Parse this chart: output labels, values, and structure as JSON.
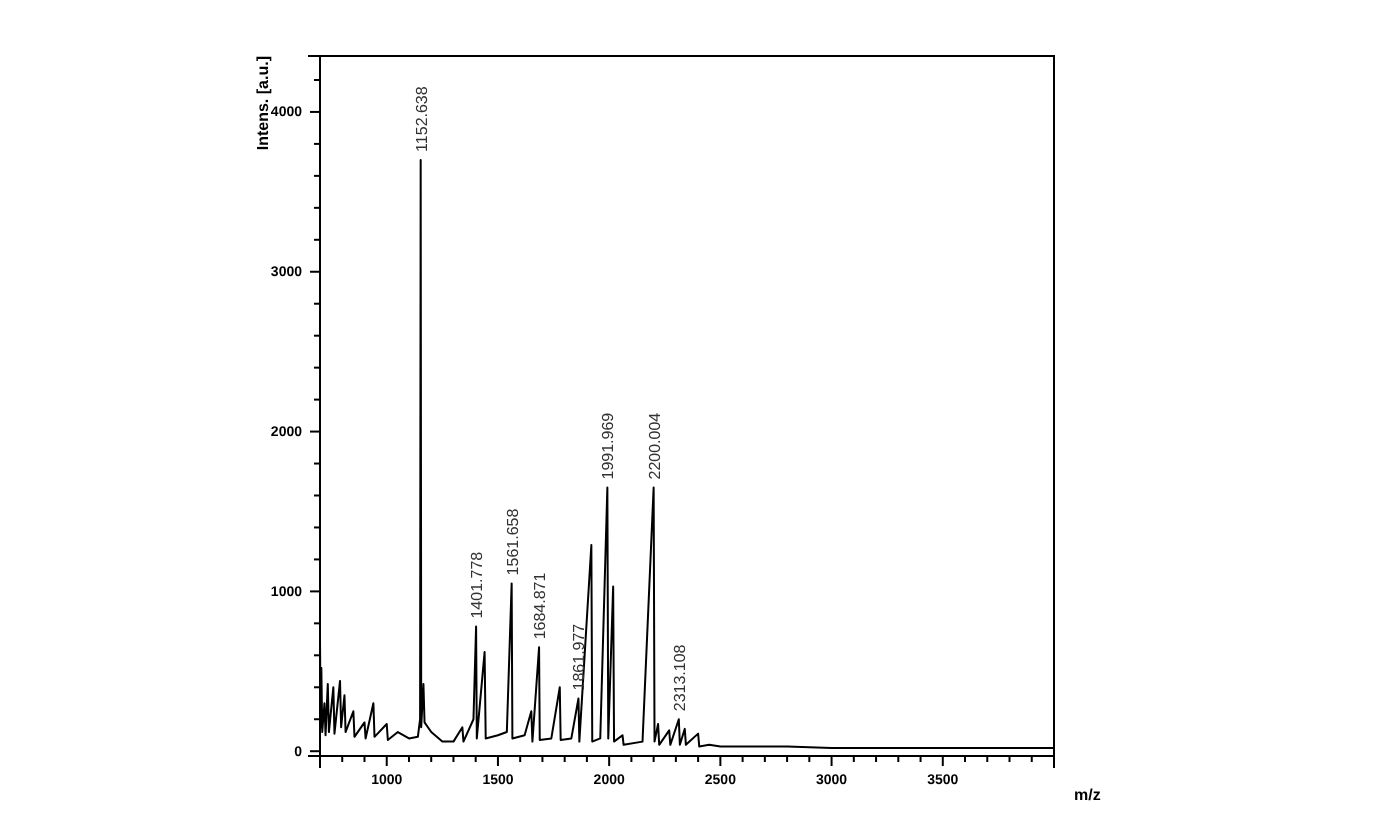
{
  "chart_data": {
    "type": "line",
    "xlabel": "m/z",
    "ylabel": "Intens. [a.u.]",
    "x": [
      700,
      703,
      706,
      710,
      720,
      725,
      735,
      740,
      760,
      765,
      790,
      795,
      810,
      815,
      850,
      855,
      900,
      905,
      940,
      945,
      1000,
      1005,
      1050,
      1100,
      1140,
      1150,
      1152.638,
      1155,
      1165,
      1170,
      1200,
      1250,
      1300,
      1340,
      1345,
      1390,
      1401.778,
      1405,
      1440,
      1445,
      1500,
      1540,
      1561.658,
      1565,
      1620,
      1650,
      1655,
      1684.871,
      1688,
      1740,
      1778,
      1782,
      1830,
      1861.977,
      1866,
      1920,
      1924,
      1960,
      1991.969,
      1996,
      2018,
      2022,
      2060,
      2065,
      2150,
      2200.004,
      2204,
      2220,
      2225,
      2270,
      2275,
      2313.108,
      2318,
      2340,
      2345,
      2400,
      2405,
      2450,
      2500,
      2600,
      2800,
      3000,
      3200,
      3500,
      3800,
      4000
    ],
    "series": [
      {
        "color": "#000000",
        "values": [
          700,
          150,
          520,
          120,
          300,
          100,
          420,
          120,
          400,
          110,
          440,
          150,
          350,
          120,
          250,
          90,
          180,
          80,
          300,
          90,
          170,
          70,
          120,
          80,
          90,
          200,
          3700,
          150,
          420,
          180,
          120,
          60,
          60,
          150,
          60,
          200,
          780,
          80,
          620,
          80,
          100,
          120,
          1050,
          80,
          100,
          250,
          60,
          650,
          70,
          80,
          400,
          70,
          80,
          330,
          60,
          1290,
          60,
          80,
          1650,
          80,
          1030,
          60,
          100,
          40,
          60,
          1650,
          60,
          170,
          40,
          130,
          40,
          200,
          40,
          140,
          40,
          110,
          30,
          40,
          30,
          30,
          30,
          20,
          20,
          20,
          20,
          20
        ]
      }
    ],
    "xlim": [
      700,
      4000
    ],
    "ylim": [
      -30,
      4350
    ],
    "xticks": [
      {
        "value": 800,
        "label": null
      },
      {
        "value": 900,
        "label": null
      },
      1000,
      {
        "value": 1100,
        "label": null
      },
      {
        "value": 1200,
        "label": null
      },
      {
        "value": 1300,
        "label": null
      },
      {
        "value": 1400,
        "label": null
      },
      1500,
      {
        "value": 1600,
        "label": null
      },
      {
        "value": 1700,
        "label": null
      },
      {
        "value": 1800,
        "label": null
      },
      {
        "value": 1900,
        "label": null
      },
      2000,
      {
        "value": 2100,
        "label": null
      },
      {
        "value": 2200,
        "label": null
      },
      {
        "value": 2300,
        "label": null
      },
      {
        "value": 2400,
        "label": null
      },
      2500,
      {
        "value": 2600,
        "label": null
      },
      {
        "value": 2700,
        "label": null
      },
      {
        "value": 2800,
        "label": null
      },
      {
        "value": 2900,
        "label": null
      },
      3000,
      {
        "value": 3100,
        "label": null
      },
      {
        "value": 3200,
        "label": null
      },
      {
        "value": 3300,
        "label": null
      },
      {
        "value": 3400,
        "label": null
      },
      3500,
      {
        "value": 3600,
        "label": null
      },
      {
        "value": 3700,
        "label": null
      },
      {
        "value": 3800,
        "label": null
      },
      {
        "value": 3900,
        "label": null
      }
    ],
    "yticks": [
      0,
      {
        "value": 200,
        "label": null
      },
      {
        "value": 400,
        "label": null
      },
      {
        "value": 600,
        "label": null
      },
      {
        "value": 800,
        "label": null
      },
      1000,
      {
        "value": 1200,
        "label": null
      },
      {
        "value": 1400,
        "label": null
      },
      {
        "value": 1600,
        "label": null
      },
      {
        "value": 1800,
        "label": null
      },
      2000,
      {
        "value": 2200,
        "label": null
      },
      {
        "value": 2400,
        "label": null
      },
      {
        "value": 2600,
        "label": null
      },
      {
        "value": 2800,
        "label": null
      },
      3000,
      {
        "value": 3200,
        "label": null
      },
      {
        "value": 3400,
        "label": null
      },
      {
        "value": 3600,
        "label": null
      },
      {
        "value": 3800,
        "label": null
      },
      4000,
      {
        "value": 4200,
        "label": null
      }
    ],
    "grid": false,
    "marker": "none",
    "line_style": "solid",
    "annotations": [
      {
        "text": "1152.638",
        "x": 1152.638,
        "y": 3700
      },
      {
        "text": "1401.778",
        "x": 1401.778,
        "y": 780
      },
      {
        "text": "1561.658",
        "x": 1561.658,
        "y": 1050
      },
      {
        "text": "1684.871",
        "x": 1684.871,
        "y": 650
      },
      {
        "text": "1861.977",
        "x": 1861.977,
        "y": 330
      },
      {
        "text": "1991.969",
        "x": 1991.969,
        "y": 1650
      },
      {
        "text": "2200.004",
        "x": 2200.004,
        "y": 1650
      },
      {
        "text": "2313.108",
        "x": 2313.108,
        "y": 200
      }
    ]
  }
}
